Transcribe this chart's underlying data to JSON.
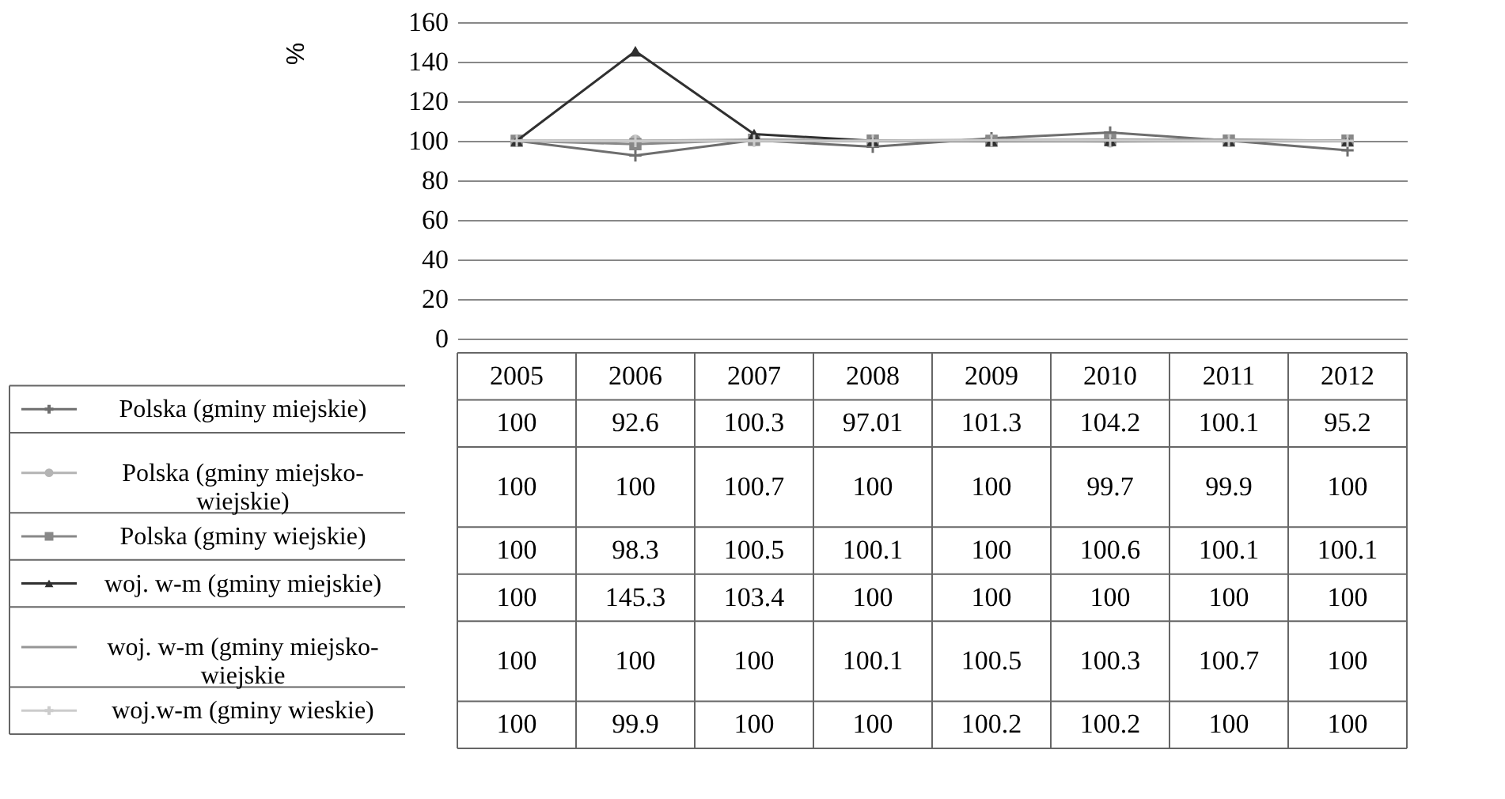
{
  "chart_data": {
    "type": "line",
    "ylabel": "%",
    "categories": [
      "2005",
      "2006",
      "2007",
      "2008",
      "2009",
      "2010",
      "2011",
      "2012"
    ],
    "ylim": [
      0,
      160
    ],
    "yticks": [
      0,
      20,
      40,
      60,
      80,
      100,
      120,
      140,
      160
    ],
    "grid": "y",
    "legend": "bottom",
    "data_labels": true,
    "series": [
      {
        "name": "Polska (gminy miejskie)",
        "color": "#6e6e6e",
        "marker": "cross",
        "values": [
          100,
          92.6,
          100.3,
          97.01,
          101.3,
          104.2,
          100.1,
          95.2
        ]
      },
      {
        "name": "Polska (gminy miejsko-wiejskie)",
        "color": "#b4b4b4",
        "marker": "circle",
        "values": [
          100,
          100,
          100.7,
          100,
          100,
          99.7,
          99.9,
          100
        ]
      },
      {
        "name": "Polska (gminy wiejskie)",
        "color": "#888888",
        "marker": "square",
        "values": [
          100,
          98.3,
          100.5,
          100.1,
          100,
          100.6,
          100.1,
          100.1
        ]
      },
      {
        "name": "woj. w-m (gminy miejskie)",
        "color": "#303030",
        "marker": "triangle",
        "values": [
          100,
          145.3,
          103.4,
          100,
          100,
          100,
          100,
          100
        ]
      },
      {
        "name": "woj. w-m (gminy miejsko-wiejskie",
        "color": "#969696",
        "marker": "none",
        "values": [
          100,
          100,
          100,
          100.1,
          100.5,
          100.3,
          100.7,
          100
        ]
      },
      {
        "name": "woj.w-m (gminy wieskie)",
        "color": "#cccccc",
        "marker": "cross",
        "values": [
          100,
          99.9,
          100,
          100,
          100.2,
          100.2,
          100,
          100
        ]
      }
    ]
  }
}
